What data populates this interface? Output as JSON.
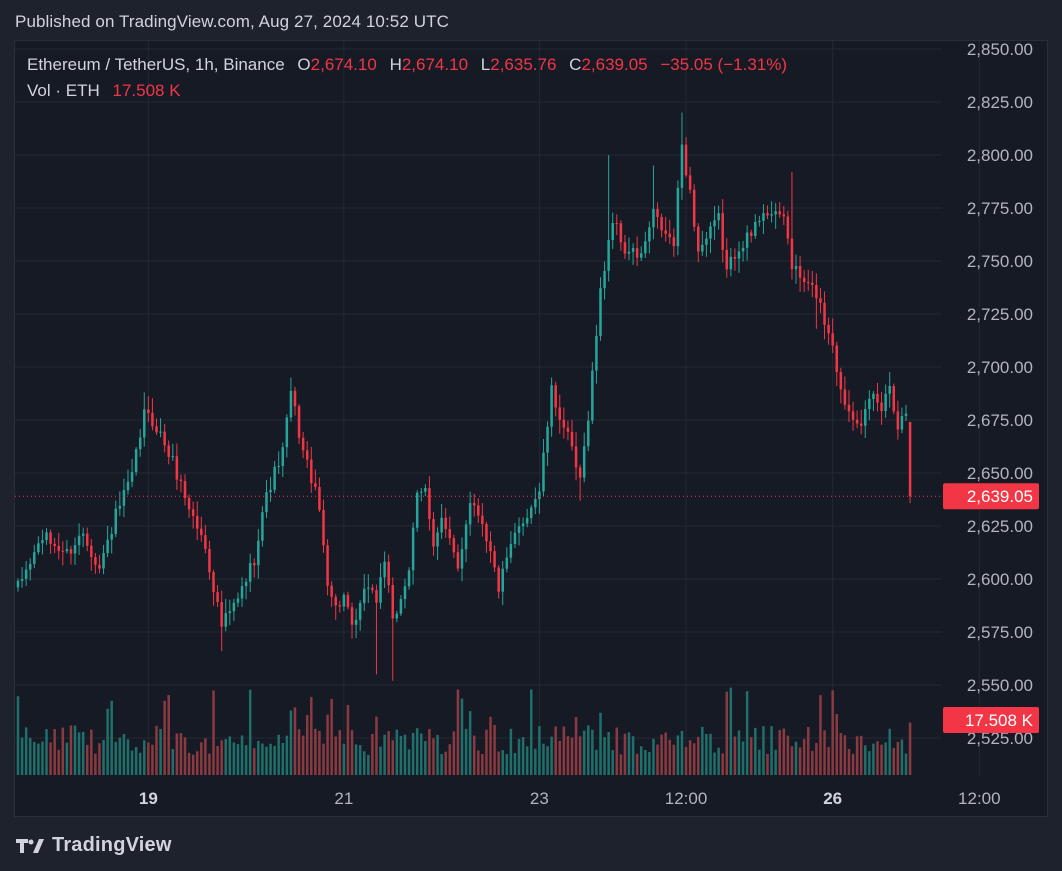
{
  "header": {
    "published": "Published on TradingView.com, Aug 27, 2024 10:52 UTC"
  },
  "legend": {
    "symbol": "Ethereum / TetherUS, 1h, Binance",
    "o_label": "O",
    "o_value": "2,674.10",
    "h_label": "H",
    "h_value": "2,674.10",
    "l_label": "L",
    "l_value": "2,635.76",
    "c_label": "C",
    "c_value": "2,639.05",
    "change": "−35.05 (−1.31%)",
    "vol_label": "Vol · ETH",
    "vol_value": "17.508 K"
  },
  "footer": {
    "brand": "TradingView",
    "logo_icon": "tradingview-logo-icon"
  },
  "colors": {
    "up": "#26a69a",
    "down": "#f23645",
    "up_volume": "#1f6f6a",
    "down_volume": "#8a3a40",
    "grid": "#242833",
    "axis_text": "#b2b5be"
  },
  "chart_data": {
    "type": "candlestick",
    "symbol": "ETHUSDT",
    "interval": "1h",
    "y_axis": {
      "ticks": [
        2525,
        2550,
        2575,
        2600,
        2625,
        2650,
        2675,
        2700,
        2725,
        2750,
        2775,
        2800,
        2825,
        2850
      ],
      "tick_labels": [
        "2,525.00",
        "2,550.00",
        "2,575.00",
        "2,600.00",
        "2,625.00",
        "2,650.00",
        "2,675.00",
        "2,700.00",
        "2,725.00",
        "2,750.00",
        "2,775.00",
        "2,800.00",
        "2,825.00",
        "2,850.00"
      ],
      "range": [
        2512,
        2856
      ]
    },
    "x_axis": {
      "tick_labels": [
        "19",
        "21",
        "23",
        "12:00",
        "26",
        "12:00"
      ],
      "tick_bold": [
        true,
        false,
        false,
        false,
        true,
        false
      ],
      "tick_hours": [
        0,
        48,
        96,
        132,
        168,
        204
      ],
      "range_hours": [
        -32,
        208
      ]
    },
    "last_price": 2639.05,
    "last_price_label": "2,639.05",
    "last_volume_label": "17.508 K",
    "anchors": [
      [
        -32,
        2596
      ],
      [
        -26,
        2620
      ],
      [
        -20,
        2612
      ],
      [
        -16,
        2622
      ],
      [
        -12,
        2605
      ],
      [
        -8,
        2630
      ],
      [
        -4,
        2648
      ],
      [
        -1,
        2678
      ],
      [
        2,
        2672
      ],
      [
        6,
        2655
      ],
      [
        10,
        2634
      ],
      [
        14,
        2615
      ],
      [
        18,
        2578
      ],
      [
        22,
        2590
      ],
      [
        26,
        2610
      ],
      [
        28,
        2632
      ],
      [
        30,
        2645
      ],
      [
        33,
        2660
      ],
      [
        35,
        2688
      ],
      [
        38,
        2660
      ],
      [
        40,
        2648
      ],
      [
        42,
        2632
      ],
      [
        44,
        2600
      ],
      [
        46,
        2586
      ],
      [
        48,
        2592
      ],
      [
        50,
        2575
      ],
      [
        54,
        2598
      ],
      [
        56,
        2590
      ],
      [
        58,
        2610
      ],
      [
        60,
        2578
      ],
      [
        64,
        2605
      ],
      [
        66,
        2638
      ],
      [
        68,
        2642
      ],
      [
        70,
        2618
      ],
      [
        72,
        2628
      ],
      [
        76,
        2605
      ],
      [
        79,
        2638
      ],
      [
        82,
        2628
      ],
      [
        86,
        2596
      ],
      [
        90,
        2620
      ],
      [
        94,
        2635
      ],
      [
        96,
        2642
      ],
      [
        99,
        2688
      ],
      [
        102,
        2672
      ],
      [
        104,
        2660
      ],
      [
        106,
        2645
      ],
      [
        108,
        2678
      ],
      [
        111,
        2735
      ],
      [
        113,
        2760
      ],
      [
        114,
        2770
      ],
      [
        117,
        2755
      ],
      [
        121,
        2752
      ],
      [
        124,
        2772
      ],
      [
        127,
        2762
      ],
      [
        129,
        2758
      ],
      [
        131,
        2805
      ],
      [
        133,
        2782
      ],
      [
        135,
        2755
      ],
      [
        137,
        2760
      ],
      [
        140,
        2770
      ],
      [
        142,
        2745
      ],
      [
        145,
        2758
      ],
      [
        148,
        2762
      ],
      [
        151,
        2775
      ],
      [
        154,
        2770
      ],
      [
        156,
        2772
      ],
      [
        158,
        2748
      ],
      [
        160,
        2742
      ],
      [
        162,
        2738
      ],
      [
        164,
        2735
      ],
      [
        166,
        2722
      ],
      [
        168,
        2712
      ],
      [
        170,
        2688
      ],
      [
        172,
        2680
      ],
      [
        175,
        2675
      ],
      [
        178,
        2685
      ],
      [
        180,
        2680
      ],
      [
        182,
        2692
      ],
      [
        184,
        2672
      ],
      [
        186,
        2680
      ]
    ],
    "last_candle": {
      "o": 2674.1,
      "h": 2674.1,
      "l": 2635.76,
      "c": 2639.05
    }
  }
}
